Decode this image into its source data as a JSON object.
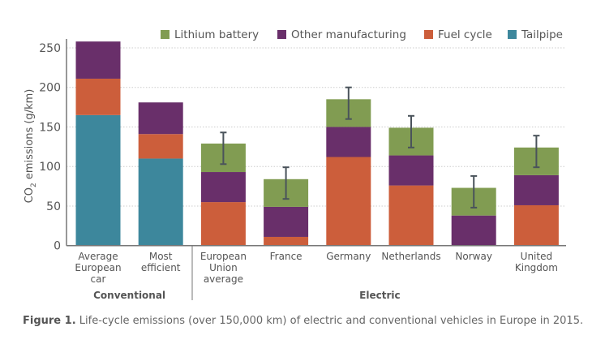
{
  "chart_data": {
    "type": "bar",
    "stacked": true,
    "ylabel": "CO2 emissions (g/km)",
    "ylim": [
      0,
      260
    ],
    "yticks": [
      0,
      50,
      100,
      150,
      200,
      250
    ],
    "grid": true,
    "legend_position": "top-right",
    "categories": [
      "Average European car",
      "Most efficient",
      "European Union average",
      "France",
      "Germany",
      "Netherlands",
      "Norway",
      "United Kingdom"
    ],
    "category_lines": [
      [
        "Average",
        "European",
        "car"
      ],
      [
        "Most",
        "efficient"
      ],
      [
        "European",
        "Union",
        "average"
      ],
      [
        "France"
      ],
      [
        "Germany"
      ],
      [
        "Netherlands"
      ],
      [
        "Norway"
      ],
      [
        "United",
        "Kingdom"
      ]
    ],
    "groups": [
      {
        "label": "Conventional",
        "categories": [
          0,
          1
        ]
      },
      {
        "label": "Electric",
        "categories": [
          2,
          3,
          4,
          5,
          6,
          7
        ]
      }
    ],
    "series": [
      {
        "name": "Tailpipe",
        "color": "#3d879c",
        "values": [
          165,
          110,
          0,
          0,
          0,
          0,
          0,
          0
        ]
      },
      {
        "name": "Fuel cycle",
        "color": "#cc5e3b",
        "values": [
          46,
          31,
          55,
          11,
          112,
          76,
          0,
          51
        ]
      },
      {
        "name": "Other manufacturing",
        "color": "#692f6a",
        "values": [
          47,
          40,
          38,
          38,
          38,
          38,
          38,
          38
        ]
      },
      {
        "name": "Lithium battery",
        "color": "#819c52",
        "values": [
          0,
          0,
          36,
          35,
          35,
          35,
          35,
          35
        ]
      }
    ],
    "legend_order": [
      "Lithium battery",
      "Other manufacturing",
      "Fuel cycle",
      "Tailpipe"
    ],
    "error_bars": [
      null,
      null,
      [
        103,
        143
      ],
      [
        59,
        99
      ],
      [
        160,
        200
      ],
      [
        124,
        164
      ],
      [
        48,
        88
      ],
      [
        99,
        139
      ]
    ]
  },
  "caption": {
    "label": "Figure 1.",
    "text": " Life-cycle emissions (over 150,000 km) of electric and conventional vehicles in Europe in 2015."
  }
}
